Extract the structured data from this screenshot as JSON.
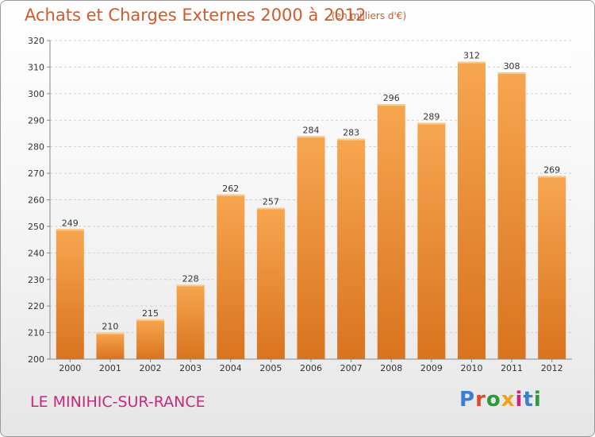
{
  "header": {
    "title": "Achats et Charges Externes 2000 à 2012",
    "subtitle": "(en milliers d'€)"
  },
  "footer": {
    "place": "LE MINIHIC-SUR-RANCE",
    "logo": "Proxiti"
  },
  "colors": {
    "title": "#d05a2e",
    "place": "#c9287a",
    "bar_top": "#f7a650",
    "bar_bottom": "#d9731e",
    "logo_letters": [
      "#3a7fd0",
      "#e04a2a",
      "#2a9a3a",
      "#f0a020",
      "#c9287a",
      "#3a7fd0",
      "#2a9a3a"
    ]
  },
  "chart_data": {
    "type": "bar",
    "categories": [
      "2000",
      "2001",
      "2002",
      "2003",
      "2004",
      "2005",
      "2006",
      "2007",
      "2008",
      "2009",
      "2010",
      "2011",
      "2012"
    ],
    "values": [
      249,
      210,
      215,
      228,
      262,
      257,
      284,
      283,
      296,
      289,
      312,
      308,
      269
    ],
    "ylim": [
      200,
      320
    ],
    "yticks": [
      200,
      210,
      220,
      230,
      240,
      250,
      260,
      270,
      280,
      290,
      300,
      310,
      320
    ],
    "grid": true,
    "data_labels": true
  }
}
